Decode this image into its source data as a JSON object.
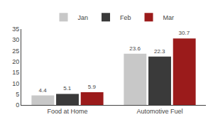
{
  "chart_data": {
    "type": "bar",
    "categories": [
      "Food at Home",
      "Automotive Fuel"
    ],
    "series": [
      {
        "name": "Jan",
        "color": "#c8c8c8",
        "values": [
          4.4,
          23.6
        ]
      },
      {
        "name": "Feb",
        "color": "#3a3a3a",
        "values": [
          5.1,
          22.3
        ]
      },
      {
        "name": "Mar",
        "color": "#9b1b1b",
        "values": [
          5.9,
          30.7
        ]
      }
    ],
    "ylim": [
      0,
      35
    ],
    "yticks": [
      0,
      5,
      10,
      15,
      20,
      25,
      30,
      35
    ],
    "grid": false,
    "legend": "top",
    "data_labels": true
  }
}
